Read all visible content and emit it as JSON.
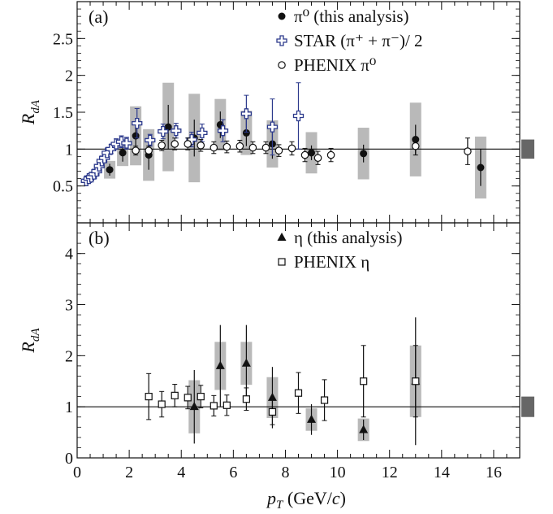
{
  "chart_data": [
    {
      "type": "scatter",
      "panel_label": "(a)",
      "ylabel": "R",
      "ylabel_sub": "dA",
      "xlim": [
        0,
        17
      ],
      "ylim": [
        0,
        3
      ],
      "y_ticks": [
        "0.5",
        "1",
        "1.5",
        "2",
        "2.5"
      ],
      "y_tick_values": [
        0.5,
        1,
        1.5,
        2,
        2.5
      ],
      "reference_line": 1,
      "legend_position": "top-right",
      "legend": [
        {
          "symbol": "filled-circle",
          "label": "π⁰ (this analysis)"
        },
        {
          "symbol": "open-cross",
          "label": "STAR (π⁺ + π⁻)/ 2"
        },
        {
          "symbol": "open-circle",
          "label": "PHENIX π⁰"
        }
      ],
      "norm_box": {
        "center": 1,
        "half_height": 0.13,
        "color": "#666666"
      },
      "series": [
        {
          "name": "π⁰ (this analysis)",
          "marker": "filled-circle",
          "color": "#111111",
          "x": [
            1.25,
            1.75,
            2.25,
            2.75,
            3.5,
            4.5,
            5.5,
            6.5,
            7.5,
            9.0,
            11.0,
            13.0,
            15.5
          ],
          "y": [
            0.72,
            0.95,
            1.18,
            0.92,
            1.3,
            1.15,
            1.33,
            1.22,
            1.07,
            0.95,
            0.94,
            1.13,
            0.75
          ],
          "err": [
            0.08,
            0.12,
            0.2,
            0.2,
            0.3,
            0.25,
            0.18,
            0.18,
            0.2,
            0.1,
            0.12,
            0.2,
            0.25
          ],
          "sys": [
            0.12,
            0.18,
            0.4,
            0.35,
            0.6,
            0.6,
            0.35,
            0.3,
            0.32,
            0.28,
            0.35,
            0.5,
            0.42
          ]
        },
        {
          "name": "STAR (π⁺ + π⁻)/ 2",
          "marker": "open-cross",
          "color": "#2c3a8c",
          "x": [
            0.35,
            0.45,
            0.55,
            0.65,
            0.75,
            0.85,
            0.95,
            1.05,
            1.15,
            1.3,
            1.5,
            1.7,
            1.9,
            2.3,
            2.8,
            3.3,
            3.8,
            4.4,
            4.8,
            5.6,
            6.5,
            7.5,
            8.5
          ],
          "y": [
            0.57,
            0.6,
            0.62,
            0.66,
            0.7,
            0.77,
            0.84,
            0.88,
            0.95,
            1.0,
            1.07,
            1.1,
            1.08,
            1.35,
            1.12,
            1.24,
            1.25,
            1.13,
            1.22,
            1.25,
            1.48,
            1.3,
            1.45
          ],
          "err": [
            0.02,
            0.02,
            0.02,
            0.03,
            0.03,
            0.04,
            0.04,
            0.05,
            0.05,
            0.06,
            0.07,
            0.08,
            0.08,
            0.2,
            0.08,
            0.1,
            0.1,
            0.1,
            0.12,
            0.15,
            0.25,
            0.38,
            0.45
          ],
          "sys": []
        },
        {
          "name": "PHENIX π⁰",
          "marker": "open-circle",
          "color": "#111111",
          "x": [
            2.25,
            2.75,
            3.25,
            3.75,
            4.25,
            4.75,
            5.25,
            5.75,
            6.25,
            6.75,
            7.25,
            7.75,
            8.25,
            8.75,
            9.25,
            9.75,
            13.0,
            15.0
          ],
          "y": [
            0.98,
            0.98,
            1.05,
            1.07,
            1.07,
            1.05,
            1.02,
            1.03,
            1.04,
            1.02,
            1.02,
            0.98,
            1.01,
            0.92,
            0.88,
            0.92,
            1.04,
            0.97
          ],
          "err": [
            0.06,
            0.06,
            0.07,
            0.08,
            0.08,
            0.08,
            0.08,
            0.08,
            0.08,
            0.08,
            0.08,
            0.08,
            0.09,
            0.09,
            0.09,
            0.09,
            0.12,
            0.18
          ],
          "sys": []
        }
      ]
    },
    {
      "type": "scatter",
      "panel_label": "(b)",
      "ylabel": "R",
      "ylabel_sub": "dA",
      "xlabel": "p",
      "xlabel_sub": "T",
      "xlabel_unit": " (GeV/",
      "xlabel_unit_c": "c",
      "xlabel_unit_end": ")",
      "xlim": [
        0,
        17
      ],
      "ylim": [
        0,
        4.6
      ],
      "y_ticks": [
        "0",
        "1",
        "2",
        "3",
        "4"
      ],
      "y_tick_values": [
        0,
        1,
        2,
        3,
        4
      ],
      "x_ticks": [
        "0",
        "2",
        "4",
        "6",
        "8",
        "10",
        "12",
        "14",
        "16"
      ],
      "x_tick_values": [
        0,
        2,
        4,
        6,
        8,
        10,
        12,
        14,
        16
      ],
      "reference_line": 1,
      "legend_position": "top-right",
      "legend": [
        {
          "symbol": "filled-triangle",
          "label": "η (this analysis)"
        },
        {
          "symbol": "open-square",
          "label": "PHENIX η"
        }
      ],
      "norm_box": {
        "center": 1,
        "half_height": 0.2,
        "color": "#666666"
      },
      "series": [
        {
          "name": "η (this analysis)",
          "marker": "filled-triangle",
          "color": "#111111",
          "x": [
            4.5,
            5.5,
            6.5,
            7.5,
            9.0,
            11.0,
            13.0
          ],
          "y": [
            1.0,
            1.8,
            1.85,
            1.18,
            0.75,
            0.55,
            1.5
          ],
          "err": [
            0.72,
            0.8,
            0.75,
            0.6,
            0.3,
            0.2,
            1.25
          ],
          "sys": [
            0.52,
            0.47,
            0.42,
            0.4,
            0.22,
            0.22,
            0.7
          ]
        },
        {
          "name": "PHENIX η",
          "marker": "open-square",
          "color": "#111111",
          "x": [
            2.75,
            3.25,
            3.75,
            4.25,
            4.75,
            5.25,
            5.75,
            6.5,
            7.5,
            8.5,
            9.5,
            11.0,
            13.0
          ],
          "y": [
            1.2,
            1.05,
            1.22,
            1.18,
            1.2,
            1.02,
            1.03,
            1.15,
            0.9,
            1.27,
            1.13,
            1.5,
            1.5
          ],
          "err": [
            0.45,
            0.25,
            0.22,
            0.22,
            0.22,
            0.2,
            0.2,
            0.22,
            0.25,
            0.4,
            0.4,
            0.7,
            0.7
          ],
          "sys": []
        }
      ]
    }
  ]
}
